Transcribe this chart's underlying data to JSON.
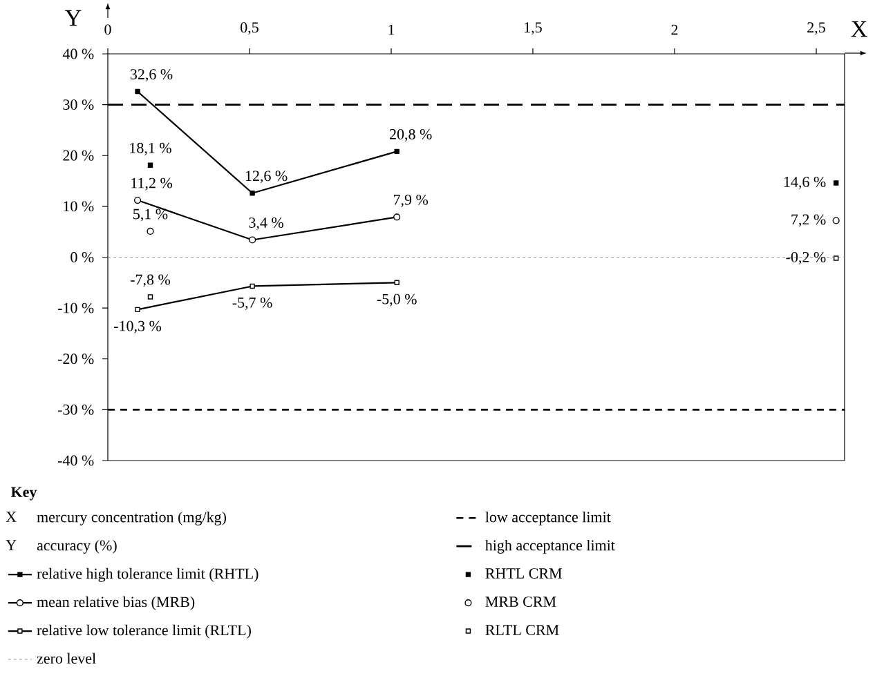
{
  "chart_data": {
    "type": "line",
    "xlabel": "X",
    "ylabel": "Y",
    "legend_title": "Key",
    "annotations": [
      "mercury concentration (mg/kg)",
      "accuracy (%)"
    ],
    "xlim": [
      0,
      2.6
    ],
    "ylim": [
      -40,
      40
    ],
    "xticks": [
      0,
      {
        "value": 0.5,
        "label": "0,5"
      },
      1,
      {
        "value": 1.5,
        "label": "1,5"
      },
      2,
      {
        "value": 2.5,
        "label": "2,5"
      }
    ],
    "yticks": [
      {
        "value": -40,
        "label": "-40 %"
      },
      {
        "value": -30,
        "label": "-30 %"
      },
      {
        "value": -20,
        "label": "-20 %"
      },
      {
        "value": -10,
        "label": "-10 %"
      },
      {
        "value": 0,
        "label": "0 %"
      },
      {
        "value": 10,
        "label": "10 %"
      },
      {
        "value": 20,
        "label": "20 %"
      },
      {
        "value": 30,
        "label": "30 %"
      },
      {
        "value": 40,
        "label": "40 %"
      }
    ],
    "legend": "bottom",
    "series": [
      {
        "name": "relative high tolerance limit (RHTL)",
        "type": "line",
        "marker": "square",
        "color": "#000000",
        "x": [
          0.105,
          0.51,
          1.02
        ],
        "values": [
          32.6,
          12.6,
          20.8
        ],
        "value_labels": [
          "32,6 %",
          "12,6 %",
          "20,8 %"
        ]
      },
      {
        "name": "mean relative bias (MRB)",
        "type": "line",
        "marker": "circle",
        "color": "#000000",
        "x": [
          0.105,
          0.51,
          1.02
        ],
        "values": [
          11.2,
          3.4,
          7.9
        ],
        "value_labels": [
          "11,2 %",
          "3,4 %",
          "7,9 %"
        ]
      },
      {
        "name": "relative low tolerance limit (RLTL)",
        "type": "line",
        "marker": "square_open",
        "color": "#000000",
        "x": [
          0.105,
          0.51,
          1.02
        ],
        "values": [
          -10.3,
          -5.7,
          -5.0
        ],
        "value_labels": [
          "-10,3 %",
          "-5,7 %",
          "-5,0 %"
        ]
      },
      {
        "name": "RHTL CRM",
        "type": "scatter",
        "marker": "square",
        "color": "#000000",
        "x": [
          0.15,
          2.57
        ],
        "values": [
          18.1,
          14.6
        ],
        "value_labels": [
          "18,1 %",
          "14,6 %"
        ]
      },
      {
        "name": "MRB CRM",
        "type": "scatter",
        "marker": "circle",
        "color": "#000000",
        "x": [
          0.15,
          2.57
        ],
        "values": [
          5.1,
          7.2
        ],
        "value_labels": [
          "5,1 %",
          "7,2 %"
        ]
      },
      {
        "name": "RLTL CRM",
        "type": "scatter",
        "marker": "square_open",
        "color": "#000000",
        "x": [
          0.15,
          2.57
        ],
        "values": [
          -7.8,
          -0.2
        ],
        "value_labels": [
          "-7,8 %",
          "-0,2 %"
        ]
      }
    ],
    "ref_lines": [
      {
        "axis": "y",
        "value": -30,
        "label": "low acceptance limit",
        "line_style": "dashed",
        "color": "#000000"
      },
      {
        "axis": "y",
        "value": 30,
        "label": "high acceptance limit",
        "line_style": "long dashed",
        "color": "#000000"
      },
      {
        "axis": "y",
        "value": 0,
        "label": "zero level",
        "line_style": "dotted",
        "color": "#999999"
      }
    ]
  }
}
